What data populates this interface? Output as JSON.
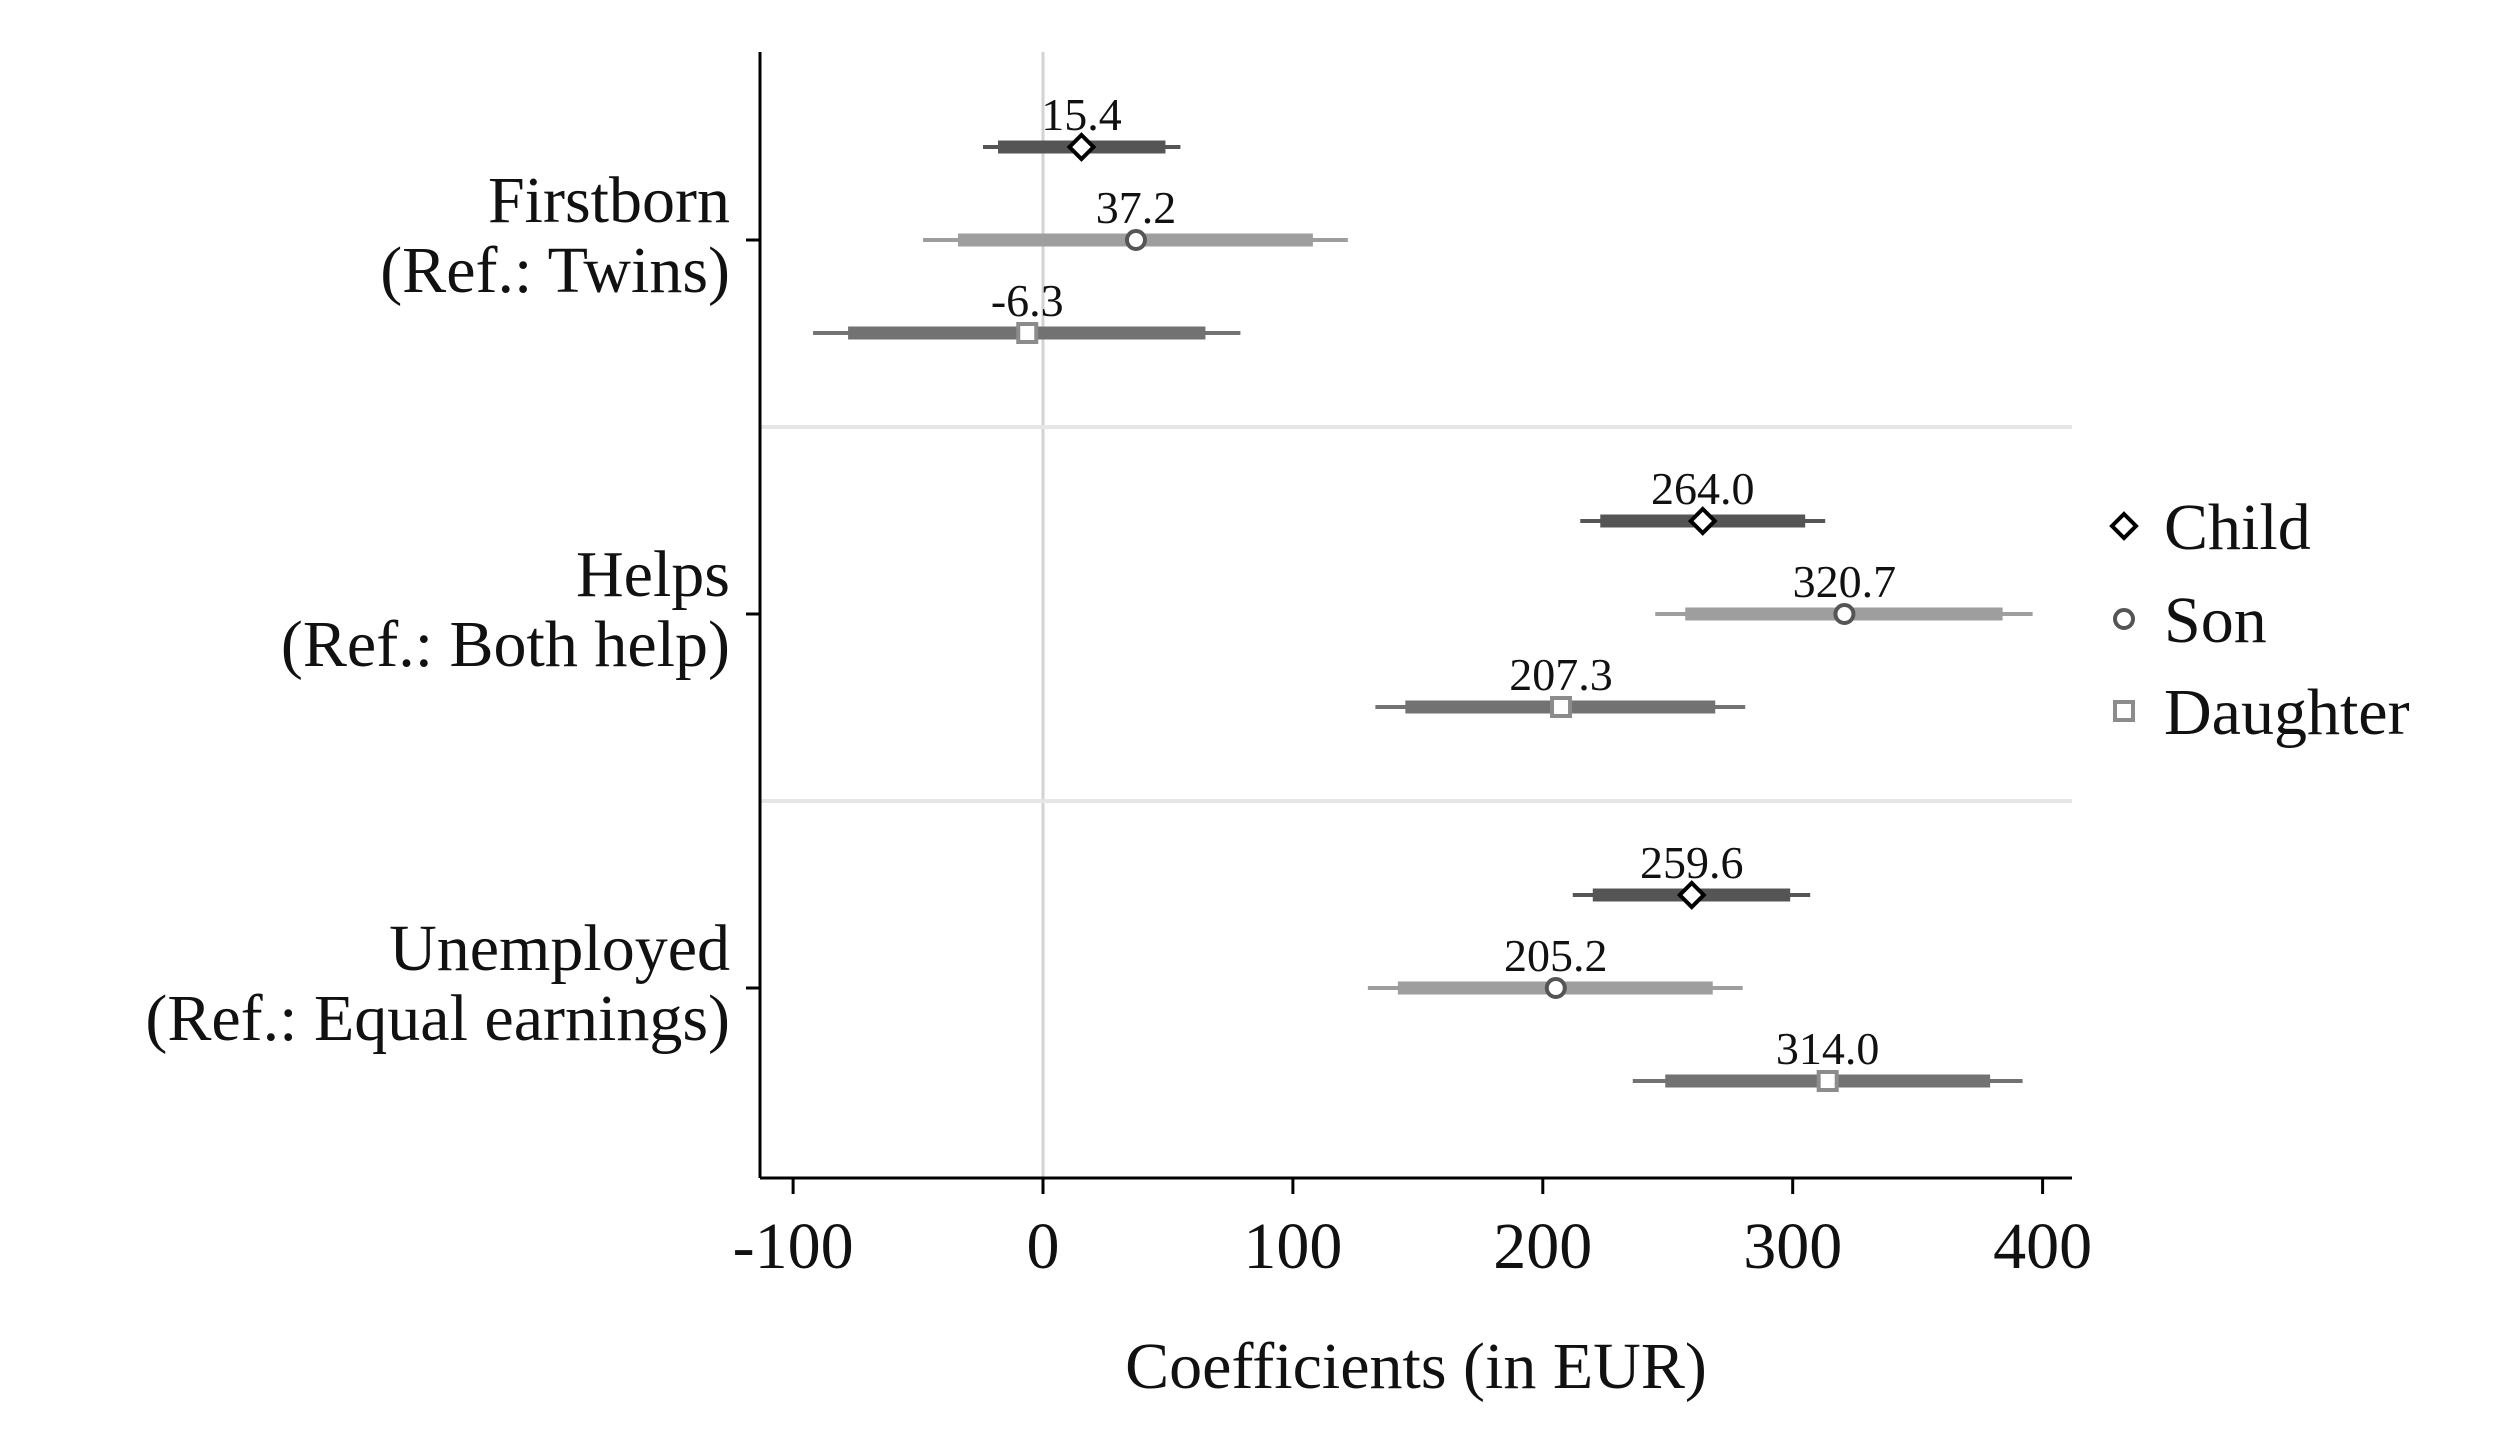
{
  "chart_data": {
    "type": "coefficient-plot",
    "title": "",
    "xlabel": "Coefficients (in EUR)",
    "ylabel": "",
    "xlim": [
      -115,
      415
    ],
    "xticks": [
      -100,
      0,
      100,
      200,
      300,
      400
    ],
    "xtick_labels": [
      "-100",
      "0",
      "100",
      "200",
      "300",
      "400"
    ],
    "reference_line": 0,
    "legend_position": "right",
    "groups": [
      {
        "label_lines": [
          "Firstborn",
          "(Ref.: Twins)"
        ],
        "estimates": [
          {
            "series": "Child",
            "value": 15.4,
            "label": "15.4",
            "ci95": [
              -24,
              55
            ],
            "ci90": [
              -18,
              49
            ]
          },
          {
            "series": "Son",
            "value": 37.2,
            "label": "37.2",
            "ci95": [
              -48,
              122
            ],
            "ci90": [
              -34,
              108
            ]
          },
          {
            "series": "Daughter",
            "value": -6.3,
            "label": "-6.3",
            "ci95": [
              -92,
              79
            ],
            "ci90": [
              -78,
              65
            ]
          }
        ]
      },
      {
        "label_lines": [
          "Helps",
          "(Ref.: Both help)"
        ],
        "estimates": [
          {
            "series": "Child",
            "value": 264.0,
            "label": "264.0",
            "ci95": [
              215,
              313
            ],
            "ci90": [
              223,
              305
            ]
          },
          {
            "series": "Son",
            "value": 320.7,
            "label": "320.7",
            "ci95": [
              245,
              396
            ],
            "ci90": [
              257,
              384
            ]
          },
          {
            "series": "Daughter",
            "value": 207.3,
            "label": "207.3",
            "ci95": [
              133,
              281
            ],
            "ci90": [
              145,
              269
            ]
          }
        ]
      },
      {
        "label_lines": [
          "Unemployed",
          "(Ref.: Equal earnings)"
        ],
        "estimates": [
          {
            "series": "Child",
            "value": 259.6,
            "label": "259.6",
            "ci95": [
              212,
              307
            ],
            "ci90": [
              220,
              299
            ]
          },
          {
            "series": "Son",
            "value": 205.2,
            "label": "205.2",
            "ci95": [
              130,
              280
            ],
            "ci90": [
              142,
              268
            ]
          },
          {
            "series": "Daughter",
            "value": 314.0,
            "label": "314.0",
            "ci95": [
              236,
              392
            ],
            "ci90": [
              249,
              379
            ]
          }
        ]
      }
    ],
    "series": [
      {
        "name": "Child",
        "marker": "diamond",
        "marker_color": "#000000",
        "ci_color": "#555555"
      },
      {
        "name": "Son",
        "marker": "circle",
        "marker_color": "#555555",
        "ci_color": "#9e9e9e"
      },
      {
        "name": "Daughter",
        "marker": "square",
        "marker_color": "#8c8c8c",
        "ci_color": "#727272"
      }
    ],
    "colors": {
      "axis": "#000000",
      "zero_line": "#d3d3d3",
      "group_separator": "#e6e6e6",
      "text": "#111111"
    }
  }
}
